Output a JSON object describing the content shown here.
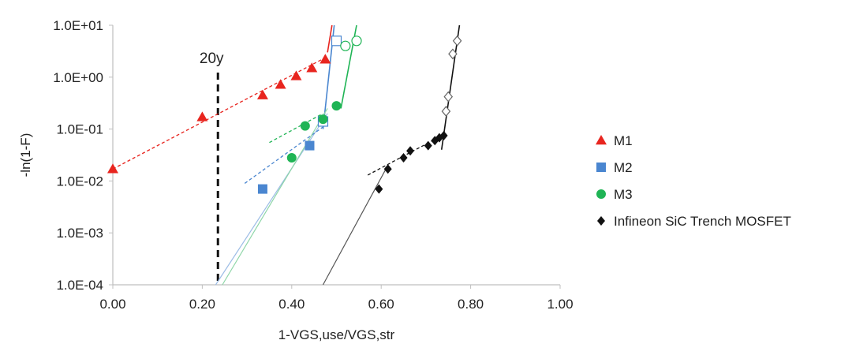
{
  "chart_data": {
    "type": "scatter",
    "title": "",
    "xlabel": "1-VGS,use/VGS,str",
    "ylabel": "-ln(1-F)",
    "xlim": [
      0,
      1
    ],
    "ylim": [
      0.0001,
      10
    ],
    "y_scale": "log",
    "grid": false,
    "legend_position": "right",
    "x_ticks": [
      0,
      0.2,
      0.4,
      0.6,
      0.8,
      1.0
    ],
    "x_tick_labels": [
      "0.00",
      "0.20",
      "0.40",
      "0.60",
      "0.80",
      "1.00"
    ],
    "y_ticks": [
      0.0001,
      0.001,
      0.01,
      0.1,
      1,
      10
    ],
    "y_tick_labels": [
      "1.0E-04",
      "1.0E-03",
      "1.0E-02",
      "1.0E-01",
      "1.0E+00",
      "1.0E+01"
    ],
    "annotations": [
      {
        "text": "20y",
        "x": 0.235
      }
    ],
    "series": [
      {
        "name": "M1",
        "marker": "triangle",
        "color": "#e8251f",
        "points": [
          [
            0.0,
            0.017
          ],
          [
            0.2,
            0.17
          ],
          [
            0.335,
            0.45
          ],
          [
            0.375,
            0.72
          ],
          [
            0.41,
            1.05
          ],
          [
            0.445,
            1.5
          ],
          [
            0.475,
            2.2
          ]
        ],
        "open_points": [],
        "fit_dashed": [
          [
            0.0,
            0.017
          ],
          [
            0.48,
            2.5
          ]
        ],
        "fit_solid": [
          [
            0.48,
            3.0
          ],
          [
            0.49,
            10.0
          ]
        ]
      },
      {
        "name": "M2",
        "marker": "square",
        "color": "#4a86d0",
        "points": [
          [
            0.335,
            0.007
          ],
          [
            0.44,
            0.048
          ]
        ],
        "open_points": [
          [
            0.47,
            0.14
          ],
          [
            0.5,
            5.0
          ]
        ],
        "fit_dashed": [
          [
            0.295,
            0.009
          ],
          [
            0.47,
            0.11
          ]
        ],
        "fit_solid_low": [
          [
            0.23,
            0.0001
          ],
          [
            0.48,
            0.2
          ]
        ],
        "fit_solid": [
          [
            0.47,
            0.1
          ],
          [
            0.495,
            10.0
          ]
        ]
      },
      {
        "name": "M3",
        "marker": "circle",
        "color": "#1fb455",
        "points": [
          [
            0.4,
            0.028
          ],
          [
            0.43,
            0.115
          ],
          [
            0.47,
            0.155
          ],
          [
            0.5,
            0.28
          ]
        ],
        "open_points": [
          [
            0.52,
            4.0
          ],
          [
            0.545,
            5.0
          ]
        ],
        "fit_dashed": [
          [
            0.35,
            0.055
          ],
          [
            0.47,
            0.2
          ]
        ],
        "fit_solid_low": [
          [
            0.245,
            0.0001
          ],
          [
            0.48,
            0.25
          ]
        ],
        "fit_solid": [
          [
            0.51,
            0.25
          ],
          [
            0.545,
            10.0
          ]
        ]
      },
      {
        "name": "Infineon SiC Trench MOSFET",
        "marker": "diamond",
        "color": "#111111",
        "points": [
          [
            0.595,
            0.007
          ],
          [
            0.615,
            0.017
          ],
          [
            0.65,
            0.028
          ],
          [
            0.665,
            0.038
          ],
          [
            0.705,
            0.048
          ],
          [
            0.72,
            0.06
          ],
          [
            0.73,
            0.068
          ],
          [
            0.74,
            0.075
          ]
        ],
        "open_points": [
          [
            0.745,
            0.22
          ],
          [
            0.75,
            0.42
          ],
          [
            0.76,
            2.8
          ],
          [
            0.77,
            5.0
          ]
        ],
        "fit_dashed": [
          [
            0.57,
            0.013
          ],
          [
            0.74,
            0.078
          ]
        ],
        "fit_solid_low": [
          [
            0.47,
            0.0001
          ],
          [
            0.615,
            0.02
          ]
        ],
        "fit_solid": [
          [
            0.735,
            0.04
          ],
          [
            0.775,
            10.0
          ]
        ]
      }
    ]
  }
}
